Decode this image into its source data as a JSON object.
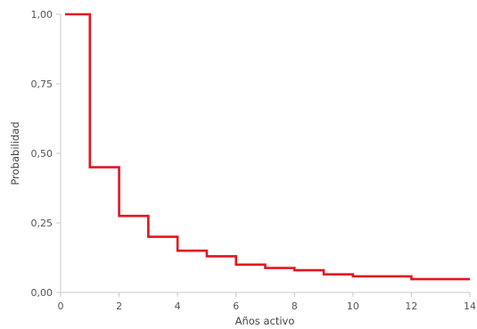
{
  "chart_data": {
    "type": "line",
    "step": true,
    "title": "",
    "xlabel": "Años activo",
    "ylabel": "Probabilidad",
    "xlim": [
      0,
      14
    ],
    "ylim": [
      0,
      1
    ],
    "x_ticks": [
      0,
      2,
      4,
      6,
      8,
      10,
      12,
      14
    ],
    "x_tick_labels": [
      "0",
      "2",
      "4",
      "6",
      "8",
      "10",
      "12",
      "14"
    ],
    "y_ticks": [
      0,
      0.25,
      0.5,
      0.75,
      1
    ],
    "y_tick_labels": [
      "0,00",
      "0,25",
      "0,50",
      "0,75",
      "1,00"
    ],
    "grid": false,
    "series": [
      {
        "color": "#e3161f",
        "x": [
          0.15,
          1,
          2,
          3,
          4,
          5,
          6,
          7,
          8,
          9,
          10,
          12,
          14
        ],
        "y": [
          1.0,
          0.45,
          0.275,
          0.2,
          0.15,
          0.13,
          0.1,
          0.088,
          0.08,
          0.065,
          0.058,
          0.048,
          0.048
        ]
      }
    ]
  }
}
